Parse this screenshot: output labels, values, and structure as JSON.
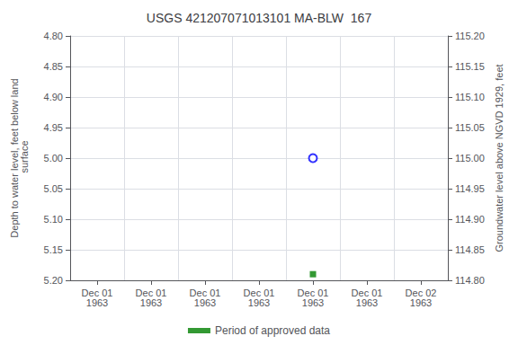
{
  "chart_data": {
    "type": "scatter",
    "title": "USGS 421207071013101 MA-BLW  167",
    "ylabel": "Depth to water level, feet below land\n surface",
    "y2label": "Groundwater level above NGVD 1929, feet",
    "categories": [
      "Dec 01\n1963",
      "Dec 01\n1963",
      "Dec 01\n1963",
      "Dec 01\n1963",
      "Dec 01\n1963",
      "Dec 01\n1963",
      "Dec 02\n1963"
    ],
    "series": [
      {
        "color": "blue",
        "marker": "open_circle",
        "values": [
          null,
          null,
          null,
          null,
          5.0,
          null,
          null
        ]
      },
      {
        "name": "Period of approved data",
        "color": "#008000",
        "marker": "square",
        "values": [
          null,
          null,
          null,
          null,
          5.19,
          null,
          null
        ]
      }
    ],
    "ylim": [
      5.2,
      4.8
    ],
    "yticks": [
      {
        "value": 4.8,
        "label": "4.80"
      },
      {
        "value": 4.85,
        "label": "4.85"
      },
      {
        "value": 4.9,
        "label": "4.90"
      },
      {
        "value": 4.95,
        "label": "4.95"
      },
      {
        "value": 5.0,
        "label": "5.00"
      },
      {
        "value": 5.05,
        "label": "5.05"
      },
      {
        "value": 5.1,
        "label": "5.10"
      },
      {
        "value": 5.15,
        "label": "5.15"
      },
      {
        "value": 5.2,
        "label": "5.20"
      }
    ],
    "y2lim": [
      114.8,
      115.2
    ],
    "y2ticks": [
      {
        "value": 114.8,
        "label": "114.80"
      },
      {
        "value": 114.85,
        "label": "114.85"
      },
      {
        "value": 114.9,
        "label": "114.90"
      },
      {
        "value": 114.95,
        "label": "114.95"
      },
      {
        "value": 115.0,
        "label": "115.00"
      },
      {
        "value": 115.05,
        "label": "115.05"
      },
      {
        "value": 115.1,
        "label": "115.10"
      },
      {
        "value": 115.15,
        "label": "115.15"
      },
      {
        "value": 115.2,
        "label": "115.20"
      }
    ],
    "grid": true,
    "legend": "bottom"
  }
}
